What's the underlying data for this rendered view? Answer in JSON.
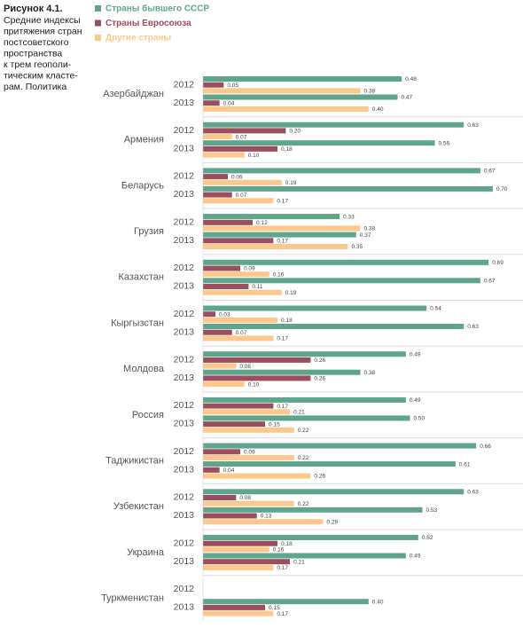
{
  "chart_data": {
    "type": "bar",
    "orientation": "horizontal",
    "title": "Рисунок 4.1.",
    "subtitle_lines": [
      "Средние индексы",
      "притяжения стран",
      "постсоветского",
      "пространства",
      "к трем геополи-",
      "тическим класте-",
      "рам. Политика"
    ],
    "groups": [
      "Азербайджан",
      "Армения",
      "Беларусь",
      "Грузия",
      "Казахстан",
      "Кыргызстан",
      "Молдова",
      "Россия",
      "Таджикистан",
      "Узбекистан",
      "Украина",
      "Туркменистан"
    ],
    "categories": [
      "2012",
      "2013",
      "2012",
      "2013",
      "2012",
      "2013",
      "2012",
      "2013",
      "2012",
      "2013",
      "2012",
      "2013",
      "2012",
      "2013",
      "2012",
      "2013",
      "2012",
      "2013",
      "2012",
      "2013",
      "2012",
      "2013",
      "2012",
      "2013"
    ],
    "series": [
      {
        "name": "Страны бывшего СССР",
        "color": "#5fa58e",
        "values": [
          0.48,
          0.47,
          0.63,
          0.56,
          0.67,
          0.7,
          0.33,
          0.37,
          0.69,
          0.67,
          0.54,
          0.63,
          0.49,
          0.38,
          0.49,
          0.5,
          0.66,
          0.61,
          0.63,
          0.53,
          0.52,
          0.49,
          null,
          0.4
        ],
        "value_labels": [
          "0.48",
          "0.47",
          "0.63",
          "0.56",
          "0.67",
          "0.70",
          "0.33",
          "0.37",
          "0.69",
          "0.67",
          "0.54",
          "0.63",
          "0.49",
          "0.38",
          "0.49",
          "0.50",
          "0.66",
          "0.61",
          "0.63",
          "0.53",
          "0.52",
          "0.49",
          null,
          "0.40"
        ]
      },
      {
        "name": "Страны Евросоюза",
        "color": "#9b4f5e",
        "values": [
          0.05,
          0.04,
          0.2,
          0.18,
          0.06,
          0.07,
          0.12,
          0.17,
          0.09,
          0.11,
          0.03,
          0.07,
          0.26,
          0.26,
          0.17,
          0.15,
          0.09,
          0.04,
          0.08,
          0.13,
          0.18,
          0.21,
          null,
          0.15
        ],
        "value_labels": [
          "0.05",
          "0.04",
          "0.20",
          "0.18",
          "0.06",
          "0.07",
          "0.12",
          "0.17",
          "0.09",
          "0.11",
          "0.03",
          "0.07",
          "0.26",
          "0.26",
          "0.17",
          "0.15",
          "0.09",
          "0.04",
          "0.08",
          "0.13",
          "0.18",
          "0.21",
          null,
          "0.15"
        ]
      },
      {
        "name": "Другие страны",
        "color": "#fdc88b",
        "values": [
          0.38,
          0.4,
          0.07,
          0.1,
          0.19,
          0.17,
          0.38,
          0.35,
          0.16,
          0.19,
          0.18,
          0.17,
          0.08,
          0.1,
          0.21,
          0.22,
          0.22,
          0.26,
          0.22,
          0.29,
          0.16,
          0.17,
          null,
          0.17
        ],
        "value_labels": [
          "0.38",
          "0.40",
          "0.07",
          "0.10",
          "0.19",
          "0.17",
          "0.38",
          "0.35",
          "0.16",
          "0.19",
          "0.18",
          "0.17",
          "0.08",
          "0.10",
          "0.21",
          "0.22",
          "0.22",
          "0.26",
          "0.22",
          "0.29",
          "0.16",
          "0.17",
          null,
          "0.17"
        ]
      }
    ]
  }
}
